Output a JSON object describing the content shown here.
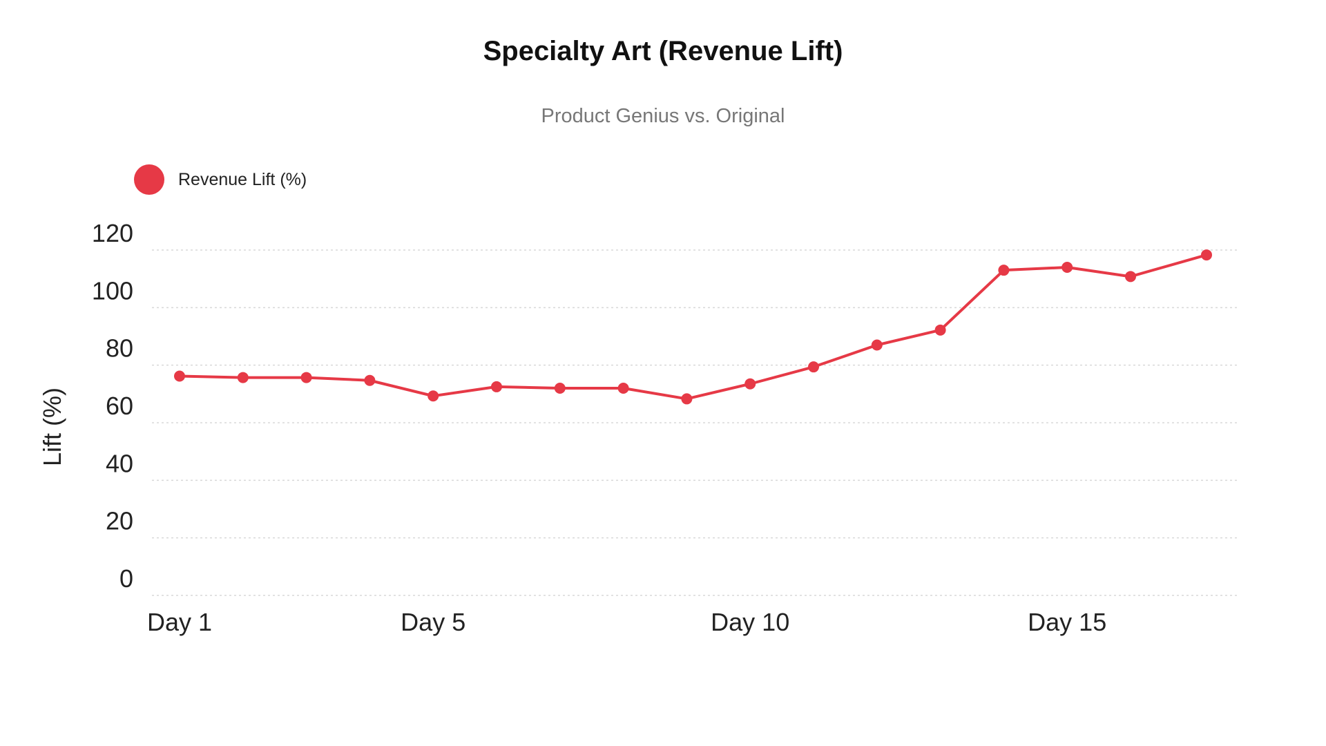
{
  "chart_data": {
    "type": "line",
    "title": "Specialty Art (Revenue Lift)",
    "subtitle": "Product Genius vs. Original",
    "xlabel": "",
    "ylabel": "Lift (%)",
    "ylim": [
      0,
      120
    ],
    "yticks": [
      0,
      20,
      40,
      60,
      80,
      100,
      120
    ],
    "x": [
      1,
      2,
      3,
      4,
      5,
      6,
      7,
      8,
      9,
      10,
      11,
      12,
      13,
      14,
      15,
      16,
      17
    ],
    "xticks": [
      {
        "x": 1,
        "label": "Day 1"
      },
      {
        "x": 5,
        "label": "Day 5"
      },
      {
        "x": 10,
        "label": "Day 10"
      },
      {
        "x": 15,
        "label": "Day 15"
      }
    ],
    "grid": true,
    "legend_position": "top-left",
    "series": [
      {
        "name": "Revenue Lift (%)",
        "color": "#e63946",
        "values": [
          76.2,
          75.7,
          75.7,
          74.7,
          69.3,
          72.5,
          72.0,
          72.0,
          68.3,
          73.5,
          79.4,
          87.0,
          92.2,
          113.0,
          114.0,
          110.8,
          118.3
        ]
      }
    ]
  }
}
